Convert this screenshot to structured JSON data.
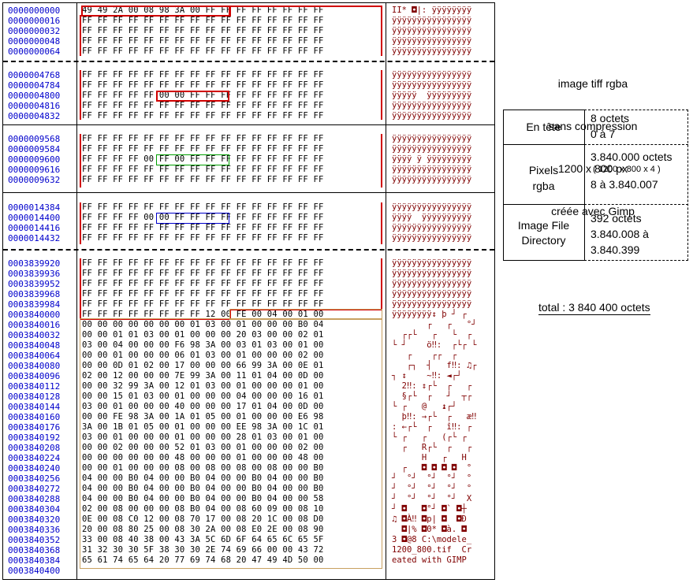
{
  "hexdump": {
    "sections": [
      {
        "offsets": [
          "0000000000",
          "0000000016",
          "0000000032",
          "0000000048",
          "0000000064"
        ],
        "hex": [
          "49 49 2A 00 08 98 3A 00 FF FF FF FF FF FF FF FF",
          "FF FF FF FF FF FF FF FF FF FF FF FF FF FF FF FF",
          "FF FF FF FF FF FF FF FF FF FF FF FF FF FF FF FF",
          "FF FF FF FF FF FF FF FF FF FF FF FF FF FF FF FF",
          "FF FF FF FF FF FF FF FF FF FF FF FF FF FF FF FF"
        ],
        "ascii": [
          "II* ◘|: ÿÿÿÿÿÿÿÿ",
          "ÿÿÿÿÿÿÿÿÿÿÿÿÿÿÿÿ",
          "ÿÿÿÿÿÿÿÿÿÿÿÿÿÿÿÿ",
          "ÿÿÿÿÿÿÿÿÿÿÿÿÿÿÿÿ",
          "ÿÿÿÿÿÿÿÿÿÿÿÿÿÿÿÿ"
        ]
      },
      {
        "offsets": [
          "0000004768",
          "0000004784",
          "0000004800",
          "0000004816",
          "0000004832"
        ],
        "hex": [
          "FF FF FF FF FF FF FF FF FF FF FF FF FF FF FF FF",
          "FF FF FF FF FF FF FF FF FF FF FF FF FF FF FF FF",
          "FF FF FF FF FF 00 00 FF FF FF FF FF FF FF FF FF",
          "FF FF FF FF FF FF FF FF FF FF FF FF FF FF FF FF",
          "FF FF FF FF FF FF FF FF FF FF FF FF FF FF FF FF"
        ],
        "ascii": [
          "ÿÿÿÿÿÿÿÿÿÿÿÿÿÿÿÿ",
          "ÿÿÿÿÿÿÿÿÿÿÿÿÿÿÿÿ",
          "ÿÿÿÿÿ  ÿÿÿÿÿÿÿÿÿ",
          "ÿÿÿÿÿÿÿÿÿÿÿÿÿÿÿÿ",
          "ÿÿÿÿÿÿÿÿÿÿÿÿÿÿÿÿ"
        ]
      },
      {
        "offsets": [
          "0000009568",
          "0000009584",
          "0000009600",
          "0000009616",
          "0000009632"
        ],
        "hex": [
          "FF FF FF FF FF FF FF FF FF FF FF FF FF FF FF FF",
          "FF FF FF FF FF FF FF FF FF FF FF FF FF FF FF FF",
          "FF FF FF FF 00 FF 00 FF FF FF FF FF FF FF FF FF",
          "FF FF FF FF FF FF FF FF FF FF FF FF FF FF FF FF",
          "FF FF FF FF FF FF FF FF FF FF FF FF FF FF FF FF"
        ],
        "ascii": [
          "ÿÿÿÿÿÿÿÿÿÿÿÿÿÿÿÿ",
          "ÿÿÿÿÿÿÿÿÿÿÿÿÿÿÿÿ",
          "ÿÿÿÿ ÿ ÿÿÿÿÿÿÿÿÿ",
          "ÿÿÿÿÿÿÿÿÿÿÿÿÿÿÿÿ",
          "ÿÿÿÿÿÿÿÿÿÿÿÿÿÿÿÿ"
        ]
      },
      {
        "offsets": [
          "0000014384",
          "0000014400",
          "0000014416",
          "0000014432"
        ],
        "hex": [
          "FF FF FF FF FF FF FF FF FF FF FF FF FF FF FF FF",
          "FF FF FF FF 00 00 FF FF FF FF FF FF FF FF FF FF",
          "FF FF FF FF FF FF FF FF FF FF FF FF FF FF FF FF",
          "FF FF FF FF FF FF FF FF FF FF FF FF FF FF FF FF"
        ],
        "ascii": [
          "ÿÿÿÿÿÿÿÿÿÿÿÿÿÿÿÿ",
          "ÿÿÿÿ  ÿÿÿÿÿÿÿÿÿÿ",
          "ÿÿÿÿÿÿÿÿÿÿÿÿÿÿÿÿ",
          "ÿÿÿÿÿÿÿÿÿÿÿÿÿÿÿÿ"
        ]
      },
      {
        "offsets": [
          "0003839920",
          "0003839936",
          "0003839952",
          "0003839968",
          "0003839984",
          "0003840000",
          "0003840016",
          "0003840032",
          "0003840048",
          "0003840064",
          "0003840080",
          "0003840096",
          "0003840112",
          "0003840128",
          "0003840144",
          "0003840160",
          "0003840176",
          "0003840192",
          "0003840208",
          "0003840224",
          "0003840240",
          "0003840256",
          "0003840272",
          "0003840288",
          "0003840304",
          "0003840320",
          "0003840336",
          "0003840352",
          "0003840368",
          "0003840384",
          "0003840400"
        ],
        "hex": [
          "FF FF FF FF FF FF FF FF FF FF FF FF FF FF FF FF",
          "FF FF FF FF FF FF FF FF FF FF FF FF FF FF FF FF",
          "FF FF FF FF FF FF FF FF FF FF FF FF FF FF FF FF",
          "FF FF FF FF FF FF FF FF FF FF FF FF FF FF FF FF",
          "FF FF FF FF FF FF FF FF FF FF FF FF FF FF FF FF",
          "FF FF FF FF FF FF FF FF 12 00 FE 00 04 00 01 00",
          "00 00 00 00 00 00 00 01 03 00 01 00 00 00 B0 04",
          "00 00 01 01 03 00 01 00 00 00 20 03 00 00 02 01",
          "03 00 04 00 00 00 F6 98 3A 00 03 01 03 00 01 00",
          "00 00 01 00 00 00 06 01 03 00 01 00 00 00 02 00",
          "00 00 0D 01 02 00 17 00 00 00 66 99 3A 00 0E 01",
          "02 00 12 00 00 00 7E 99 3A 00 11 01 04 00 0D 00",
          "00 00 32 99 3A 00 12 01 03 00 01 00 00 00 01 00",
          "00 00 15 01 03 00 01 00 00 00 04 00 00 00 16 01",
          "03 00 01 00 00 00 40 00 00 00 17 01 04 00 0D 00",
          "00 00 FE 98 3A 00 1A 01 05 00 01 00 00 00 E6 98",
          "3A 00 1B 01 05 00 01 00 00 00 EE 98 3A 00 1C 01",
          "03 00 01 00 00 00 01 00 00 00 28 01 03 00 01 00",
          "00 00 02 00 00 00 52 01 03 00 01 00 00 00 02 00",
          "00 00 00 00 00 00 48 00 00 00 01 00 00 00 48 00",
          "00 00 01 00 00 00 08 00 08 00 08 00 08 00 00 B0",
          "04 00 00 B0 04 00 00 B0 04 00 00 B0 04 00 00 B0",
          "04 00 00 B0 04 00 00 B0 04 00 00 B0 04 00 00 B0",
          "04 00 00 B0 04 00 00 B0 04 00 00 B0 04 00 00 58",
          "02 00 08 00 00 00 08 B0 04 00 08 60 09 00 08 10",
          "0E 00 08 C0 12 00 08 70 17 00 08 20 1C 00 08 D0",
          "20 00 08 80 25 00 08 30 2A 00 08 E0 2E 00 08 90",
          "33 00 08 40 38 00 43 3A 5C 6D 6F 64 65 6C 65 5F",
          "31 32 30 30 5F 38 30 30 2E 74 69 66 00 00 43 72",
          "65 61 74 65 64 20 77 69 74 68 20 47 49 4D 50 00",
          ""
        ],
        "ascii": [
          "ÿÿÿÿÿÿÿÿÿÿÿÿÿÿÿÿ",
          "ÿÿÿÿÿÿÿÿÿÿÿÿÿÿÿÿ",
          "ÿÿÿÿÿÿÿÿÿÿÿÿÿÿÿÿ",
          "ÿÿÿÿÿÿÿÿÿÿÿÿÿÿÿÿ",
          "ÿÿÿÿÿÿÿÿÿÿÿÿÿÿÿÿ",
          "ÿÿÿÿÿÿÿÿ↕ þ ┘ ┌ ",
          "       ┌   ┌   °┘",
          "  ┌┌└   ┌   └  ┌",
          "└ ┘    ö‼:  ┌└┌ └",
          "   ┌    ┌┌  ┌   ",
          "   ┌┐  ┤   f‼: ♫┌",
          "┐ ↕    ~‼: ◄┌┘  ",
          "  2‼: ↕┌└  ┌   ┌",
          "  §┌└  ┌   ┘  ┬┌",
          "└ ┌   @   ↨┌┘   ",
          "  þ‼: →┌└  ┌   æ‼",
          ": ←┌└  ┌   î‼: ┌",
          "└ ┌   ┌   (┌└ ┌",
          "  ┌   R┌└  ┌   ┌",
          "      H   ┌   H",
          "  ┌   ◘ ◘ ◘ ◘  °",
          "┘  °┘  °┘  °┘  °",
          "┘  °┘  °┘  °┘  °",
          "┘  °┘  °┘  °┘  X",
          "┘ ◘   ◘°┘ ◘` ◘┼",
          "♫ ◘À‼ ◘p| ◘  ◘Ð",
          "  ◘|% ◘0* ◘à. ◘",
          "3 ◘@8 C:\\modele_",
          "1200_800.tif  Cr",
          "eated with GIMP",
          ""
        ]
      }
    ]
  },
  "annotation": {
    "lines": [
      "image tiff rgba",
      "sans compression",
      "1200 x 800 px",
      "créée avec Gimp"
    ]
  },
  "table": {
    "rows": [
      {
        "label": "En tête",
        "values": [
          "8 octets",
          "0 à 7"
        ]
      },
      {
        "label": "Pixels\nrgba",
        "values": [
          "3.840.000 octets",
          "( 1200 x 800 x 4 )",
          "8 à 3.840.007"
        ]
      },
      {
        "label": "Image File\nDirectory",
        "values": [
          "392 octets",
          "3.840.008 à",
          "3.840.399"
        ]
      }
    ]
  },
  "total": "total : 3 840 400 octets",
  "colors": {
    "offset": "#0000cc",
    "ascii": "#800000",
    "highlight_red": "#d00000",
    "highlight_green": "#00a000"
  }
}
